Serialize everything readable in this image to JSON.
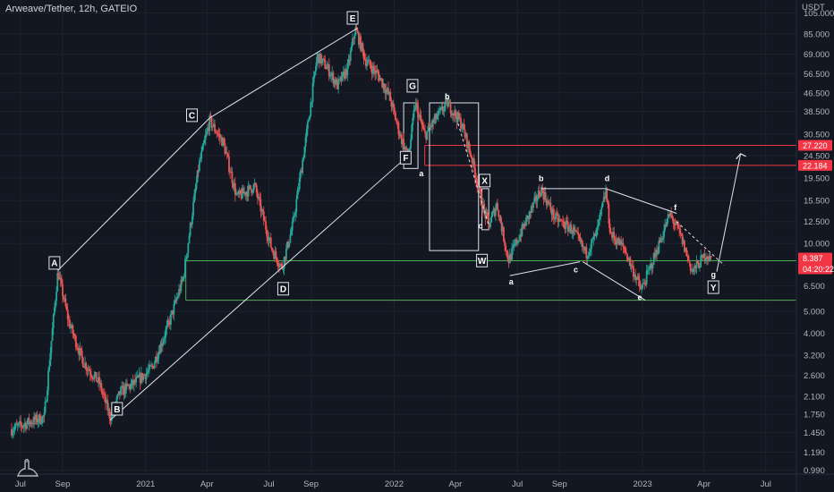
{
  "header": {
    "symbol_title": "Arweave/Tether, 12h, GATEIO"
  },
  "price_axis": {
    "unit": "USDT",
    "ticks": [
      "105.000",
      "85.000",
      "69.000",
      "56.500",
      "46.500",
      "38.500",
      "30.500",
      "24.500",
      "19.500",
      "15.500",
      "12.500",
      "10.000",
      "6.500",
      "5.000",
      "4.000",
      "3.200",
      "2.600",
      "2.100",
      "1.750",
      "1.450",
      "1.190",
      "0.990"
    ],
    "price_badges": [
      {
        "label": "27.220",
        "color": "#f23645"
      },
      {
        "label": "22.184",
        "color": "#f23645"
      },
      {
        "label": "8.387",
        "color": "#f23645"
      },
      {
        "label": "04:20:22",
        "color": "#f23645"
      }
    ]
  },
  "time_axis": {
    "ticks": [
      "Jul",
      "Sep",
      "2021",
      "Apr",
      "Jul",
      "Sep",
      "2022",
      "Apr",
      "Jul",
      "Sep",
      "2023",
      "Apr",
      "Jul"
    ]
  },
  "wave_labels": {
    "boxed": [
      "A",
      "B",
      "C",
      "D",
      "E",
      "F",
      "G",
      "W",
      "X",
      "Y"
    ],
    "plain": [
      "a",
      "b",
      "c",
      "a",
      "b",
      "c",
      "d",
      "e",
      "f",
      "g"
    ]
  },
  "horizontal_levels": [
    {
      "price": 27.22,
      "color": "#f23645"
    },
    {
      "price": 22.184,
      "color": "#f23645"
    },
    {
      "price": 8.387,
      "color": "#4caf50"
    },
    {
      "price": 5.6,
      "color": "#4caf50"
    }
  ],
  "colors": {
    "background": "#131722",
    "up_candle": "#26a69a",
    "down_candle": "#ef5350",
    "drawing": "#e0e3eb"
  },
  "chart_data": {
    "type": "line",
    "title": "Arweave/Tether, 12h, GATEIO",
    "y_scale": "log",
    "ylim": [
      0.95,
      120
    ],
    "xlim": [
      "2020-06-01",
      "2023-08-15"
    ],
    "grid": true,
    "legend": "none",
    "series": [
      {
        "name": "Arweave/Tether",
        "points": [
          [
            "2020-06-18",
            1.5
          ],
          [
            "2020-07-10",
            1.6
          ],
          [
            "2020-08-05",
            1.7
          ],
          [
            "2020-08-25",
            7.5
          ],
          [
            "2020-09-10",
            4.5
          ],
          [
            "2020-10-01",
            3.0
          ],
          [
            "2020-10-25",
            2.4
          ],
          [
            "2020-11-10",
            1.7
          ],
          [
            "2020-11-25",
            2.2
          ],
          [
            "2020-12-15",
            2.4
          ],
          [
            "2021-01-10",
            2.8
          ],
          [
            "2021-02-05",
            4.5
          ],
          [
            "2021-02-25",
            7.0
          ],
          [
            "2021-03-20",
            22.0
          ],
          [
            "2021-04-05",
            35.0
          ],
          [
            "2021-04-25",
            28.0
          ],
          [
            "2021-05-15",
            16.0
          ],
          [
            "2021-06-10",
            18.0
          ],
          [
            "2021-07-05",
            9.5
          ],
          [
            "2021-07-20",
            7.8
          ],
          [
            "2021-08-05",
            12.0
          ],
          [
            "2021-08-25",
            30.0
          ],
          [
            "2021-09-10",
            68.0
          ],
          [
            "2021-09-25",
            60.0
          ],
          [
            "2021-10-10",
            50.0
          ],
          [
            "2021-10-25",
            60.0
          ],
          [
            "2021-11-05",
            90.0
          ],
          [
            "2021-11-20",
            65.0
          ],
          [
            "2021-12-10",
            55.0
          ],
          [
            "2021-12-25",
            45.0
          ],
          [
            "2022-01-10",
            30.0
          ],
          [
            "2022-01-22",
            24.0
          ],
          [
            "2022-02-01",
            42.0
          ],
          [
            "2022-02-15",
            30.0
          ],
          [
            "2022-03-01",
            35.0
          ],
          [
            "2022-03-20",
            42.0
          ],
          [
            "2022-04-10",
            34.0
          ],
          [
            "2022-04-25",
            24.0
          ],
          [
            "2022-05-10",
            15.0
          ],
          [
            "2022-05-20",
            12.0
          ],
          [
            "2022-06-01",
            15.0
          ],
          [
            "2022-06-18",
            8.4
          ],
          [
            "2022-07-05",
            11.0
          ],
          [
            "2022-08-05",
            17.5
          ],
          [
            "2022-08-25",
            13.0
          ],
          [
            "2022-09-20",
            11.5
          ],
          [
            "2022-10-10",
            9.0
          ],
          [
            "2022-10-25",
            11.0
          ],
          [
            "2022-11-08",
            17.0
          ],
          [
            "2022-11-15",
            11.0
          ],
          [
            "2022-12-05",
            9.5
          ],
          [
            "2022-12-30",
            6.2
          ],
          [
            "2023-01-20",
            9.0
          ],
          [
            "2023-02-10",
            13.5
          ],
          [
            "2023-02-25",
            11.0
          ],
          [
            "2023-03-15",
            7.5
          ],
          [
            "2023-04-05",
            9.0
          ],
          [
            "2023-04-12",
            8.387
          ]
        ]
      }
    ],
    "annotations": [
      {
        "text": "A",
        "x": "2020-08-20",
        "y": 8.2,
        "boxed": true
      },
      {
        "text": "B",
        "x": "2020-11-20",
        "y": 1.85,
        "boxed": true
      },
      {
        "text": "C",
        "x": "2021-03-10",
        "y": 37.0,
        "boxed": true
      },
      {
        "text": "D",
        "x": "2021-07-22",
        "y": 6.3,
        "boxed": true
      },
      {
        "text": "E",
        "x": "2021-11-01",
        "y": 100.0,
        "boxed": true
      },
      {
        "text": "F",
        "x": "2022-01-18",
        "y": 24.0,
        "boxed": true
      },
      {
        "text": "G",
        "x": "2022-01-28",
        "y": 50.0,
        "boxed": true
      },
      {
        "text": "a",
        "x": "2022-02-10",
        "y": 20.5,
        "boxed": false
      },
      {
        "text": "b",
        "x": "2022-03-20",
        "y": 45.0,
        "boxed": false
      },
      {
        "text": "c",
        "x": "2022-05-08",
        "y": 12.0,
        "boxed": false
      },
      {
        "text": "X",
        "x": "2022-05-14",
        "y": 19.0,
        "boxed": true
      },
      {
        "text": "W",
        "x": "2022-05-10",
        "y": 8.4,
        "boxed": true
      },
      {
        "text": "a",
        "x": "2022-06-22",
        "y": 6.8,
        "boxed": false
      },
      {
        "text": "b",
        "x": "2022-08-05",
        "y": 19.5,
        "boxed": false
      },
      {
        "text": "c",
        "x": "2022-09-25",
        "y": 7.7,
        "boxed": false
      },
      {
        "text": "d",
        "x": "2022-11-10",
        "y": 19.5,
        "boxed": false
      },
      {
        "text": "e",
        "x": "2022-12-28",
        "y": 5.8,
        "boxed": false
      },
      {
        "text": "f",
        "x": "2023-02-18",
        "y": 14.5,
        "boxed": false
      },
      {
        "text": "g",
        "x": "2023-04-15",
        "y": 7.3,
        "boxed": false
      },
      {
        "text": "Y",
        "x": "2023-04-15",
        "y": 6.4,
        "boxed": true
      }
    ]
  }
}
